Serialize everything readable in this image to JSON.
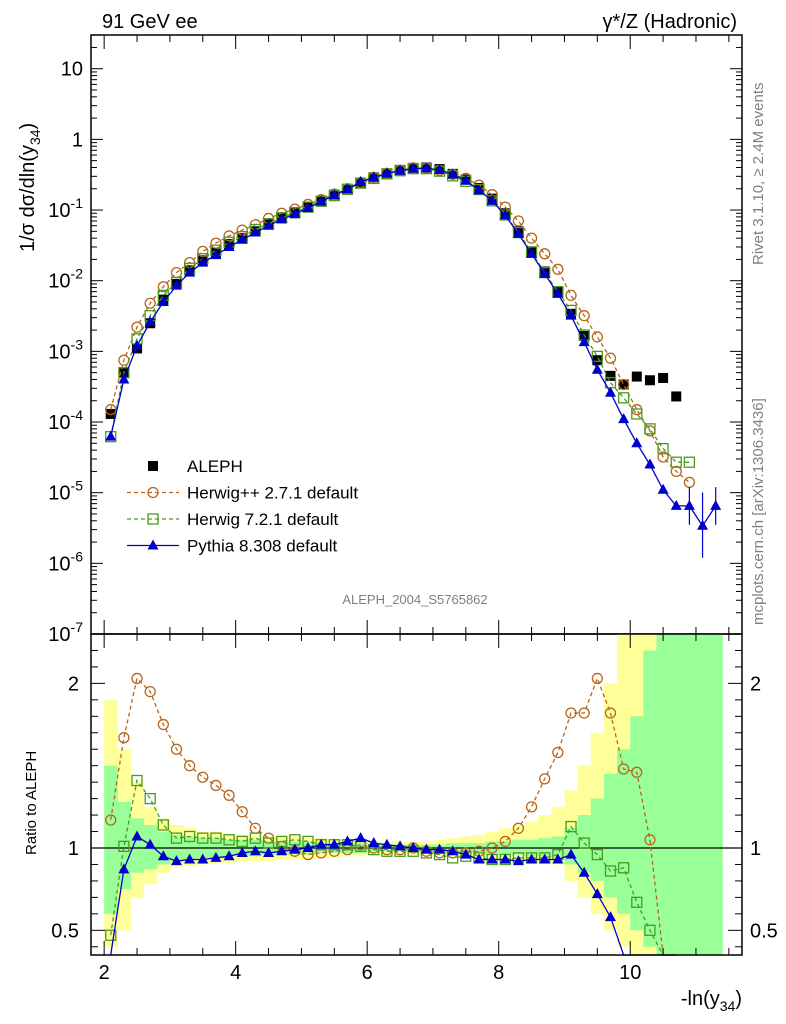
{
  "header": {
    "left": "91 GeV ee",
    "right": "γ*/Z (Hadronic)"
  },
  "side_labels": {
    "rivet": "Rivet 3.1.10, ≥ 2.4M events",
    "mcplots": "mcplots.cern.ch [arXiv:1306.3436]"
  },
  "watermark": "ALEPH_2004_S5765862",
  "chart_data": [
    {
      "type": "line",
      "ylabel": "1/σ dσ/dln(y34)",
      "yscale": "log",
      "ylim": [
        1e-07,
        30
      ],
      "xlim": [
        1.8,
        11.7
      ],
      "ytick_labels": [
        "10^-7",
        "10^-6",
        "10^-5",
        "10^-4",
        "10^-3",
        "10^-2",
        "10^-1",
        "1",
        "10"
      ],
      "legend": {
        "placement": "lower-left",
        "entries": [
          "ALEPH",
          "Herwig++ 2.7.1 default",
          "Herwig 7.2.1 default",
          "Pythia 8.308 default"
        ]
      },
      "colors": {
        "ALEPH": "#000000",
        "Herwig++": "#b8651a",
        "Herwig7": "#4a9a1f",
        "Pythia": "#0000cc"
      },
      "x": [
        2.1,
        2.3,
        2.5,
        2.7,
        2.9,
        3.1,
        3.3,
        3.5,
        3.7,
        3.9,
        4.1,
        4.3,
        4.5,
        4.7,
        4.9,
        5.1,
        5.3,
        5.5,
        5.7,
        5.9,
        6.1,
        6.3,
        6.5,
        6.7,
        6.9,
        7.1,
        7.3,
        7.5,
        7.7,
        7.9,
        8.1,
        8.3,
        8.5,
        8.7,
        8.9,
        9.1,
        9.3,
        9.5,
        9.7,
        9.9,
        10.1,
        10.3,
        10.5,
        10.7,
        10.9,
        11.1,
        11.3
      ],
      "series": [
        {
          "name": "ALEPH",
          "marker": "square",
          "values": [
            0.00013,
            0.0005,
            0.0011,
            0.0025,
            0.0054,
            0.009,
            0.014,
            0.0195,
            0.025,
            0.033,
            0.04,
            0.05,
            0.063,
            0.076,
            0.09,
            0.11,
            0.135,
            0.165,
            0.2,
            0.245,
            0.29,
            0.33,
            0.37,
            0.395,
            0.4,
            0.38,
            0.325,
            0.27,
            0.205,
            0.145,
            0.09,
            0.05,
            0.026,
            0.0135,
            0.007,
            0.0034,
            0.00165,
            0.00075,
            0.00045,
            0.00034,
            0.00044,
            0.00039,
            0.00042,
            0.00023,
            null,
            null,
            null
          ]
        },
        {
          "name": "Herwig++ 2.7.1 default",
          "marker": "open-circle",
          "values": [
            0.00015,
            0.00075,
            0.0022,
            0.0048,
            0.0082,
            0.013,
            0.018,
            0.026,
            0.034,
            0.043,
            0.052,
            0.062,
            0.076,
            0.09,
            0.103,
            0.12,
            0.14,
            0.168,
            0.2,
            0.245,
            0.29,
            0.33,
            0.365,
            0.395,
            0.39,
            0.365,
            0.32,
            0.28,
            0.225,
            0.165,
            0.11,
            0.07,
            0.04,
            0.024,
            0.0145,
            0.0062,
            0.0032,
            0.0016,
            0.0008,
            0.00034,
            0.00015,
            7.5e-05,
            3.2e-05,
            2e-05,
            1.4e-05,
            null,
            null
          ]
        },
        {
          "name": "Herwig 7.2.1 default",
          "marker": "open-square",
          "values": [
            6.2e-05,
            0.0005,
            0.0015,
            0.0032,
            0.0062,
            0.0095,
            0.015,
            0.0205,
            0.027,
            0.035,
            0.042,
            0.053,
            0.064,
            0.078,
            0.092,
            0.11,
            0.133,
            0.16,
            0.196,
            0.24,
            0.28,
            0.325,
            0.36,
            0.385,
            0.385,
            0.355,
            0.305,
            0.255,
            0.195,
            0.135,
            0.085,
            0.048,
            0.0255,
            0.013,
            0.007,
            0.0038,
            0.0017,
            0.00085,
            0.00036,
            0.00022,
            0.00013,
            8e-05,
            4.2e-05,
            2.7e-05,
            2.7e-05,
            null,
            null
          ]
        },
        {
          "name": "Pythia 8.308 default",
          "marker": "filled-triangle",
          "values": [
            6.2e-05,
            0.0004,
            0.0012,
            0.0026,
            0.005,
            0.0085,
            0.013,
            0.018,
            0.023,
            0.03,
            0.038,
            0.048,
            0.06,
            0.074,
            0.088,
            0.107,
            0.132,
            0.162,
            0.197,
            0.25,
            0.29,
            0.33,
            0.36,
            0.385,
            0.39,
            0.37,
            0.32,
            0.26,
            0.19,
            0.135,
            0.084,
            0.046,
            0.024,
            0.0125,
            0.0065,
            0.0032,
            0.00135,
            0.00055,
            0.00026,
            0.00011,
            5e-05,
            2.5e-05,
            1.1e-05,
            6.5e-06,
            6.5e-06,
            3.4e-06,
            6.5e-06
          ]
        }
      ]
    },
    {
      "type": "line",
      "ylabel": "Ratio to ALEPH",
      "xlabel": "-ln(y34)",
      "ylim": [
        0.35,
        2.3
      ],
      "xlim": [
        1.8,
        11.7
      ],
      "xticks": [
        2,
        4,
        6,
        8,
        10
      ],
      "yticks": [
        0.5,
        1,
        2
      ],
      "bands": {
        "x_edges": [
          2.0,
          2.2,
          2.4,
          2.6,
          2.8,
          3.0,
          3.2,
          3.4,
          3.6,
          3.8,
          4.0,
          4.2,
          4.4,
          4.6,
          4.8,
          5.0,
          5.2,
          5.4,
          5.6,
          5.8,
          6.0,
          6.2,
          6.4,
          6.6,
          6.8,
          7.0,
          7.2,
          7.4,
          7.6,
          7.8,
          8.0,
          8.2,
          8.4,
          8.6,
          8.8,
          9.0,
          9.2,
          9.4,
          9.6,
          9.8,
          10.0,
          10.2,
          10.4,
          10.6,
          10.8,
          11.0,
          11.2,
          11.4
        ],
        "green_lo": [
          0.6,
          0.75,
          0.85,
          0.87,
          0.9,
          0.92,
          0.93,
          0.94,
          0.94,
          0.95,
          0.95,
          0.95,
          0.96,
          0.96,
          0.96,
          0.96,
          0.97,
          0.97,
          0.97,
          0.97,
          0.98,
          0.98,
          0.98,
          0.98,
          0.98,
          0.98,
          0.97,
          0.97,
          0.97,
          0.96,
          0.96,
          0.96,
          0.95,
          0.95,
          0.94,
          0.9,
          0.85,
          0.8,
          0.7,
          0.6,
          0.5,
          0.4,
          0.3,
          0.3,
          0.3,
          0.3,
          0.3
        ],
        "green_hi": [
          1.5,
          1.28,
          1.18,
          1.14,
          1.1,
          1.08,
          1.07,
          1.06,
          1.06,
          1.05,
          1.05,
          1.05,
          1.04,
          1.04,
          1.04,
          1.04,
          1.03,
          1.03,
          1.03,
          1.03,
          1.02,
          1.02,
          1.02,
          1.02,
          1.02,
          1.02,
          1.03,
          1.03,
          1.03,
          1.04,
          1.04,
          1.05,
          1.05,
          1.06,
          1.07,
          1.12,
          1.2,
          1.3,
          1.45,
          1.6,
          1.8,
          2.2,
          2.5,
          2.6,
          2.7,
          2.8,
          3.0
        ],
        "yellow_lo": [
          0.4,
          0.5,
          0.7,
          0.78,
          0.85,
          0.88,
          0.89,
          0.9,
          0.91,
          0.91,
          0.92,
          0.92,
          0.92,
          0.93,
          0.93,
          0.93,
          0.94,
          0.94,
          0.95,
          0.95,
          0.96,
          0.96,
          0.96,
          0.96,
          0.96,
          0.96,
          0.95,
          0.94,
          0.94,
          0.93,
          0.93,
          0.92,
          0.92,
          0.91,
          0.9,
          0.8,
          0.7,
          0.6,
          0.5,
          0.4,
          0.3,
          0.3,
          0.3,
          0.3,
          0.3,
          0.3,
          0.3
        ],
        "yellow_hi": [
          1.9,
          1.6,
          1.4,
          1.25,
          1.18,
          1.14,
          1.12,
          1.1,
          1.1,
          1.09,
          1.08,
          1.08,
          1.07,
          1.07,
          1.07,
          1.06,
          1.06,
          1.05,
          1.05,
          1.05,
          1.04,
          1.04,
          1.04,
          1.04,
          1.04,
          1.05,
          1.06,
          1.07,
          1.08,
          1.1,
          1.12,
          1.14,
          1.16,
          1.2,
          1.25,
          1.35,
          1.5,
          1.7,
          2.0,
          2.3,
          2.8,
          3.0,
          3.0,
          3.0,
          3.0,
          3.0,
          3.0
        ]
      },
      "x": [
        2.1,
        2.3,
        2.5,
        2.7,
        2.9,
        3.1,
        3.3,
        3.5,
        3.7,
        3.9,
        4.1,
        4.3,
        4.5,
        4.7,
        4.9,
        5.1,
        5.3,
        5.5,
        5.7,
        5.9,
        6.1,
        6.3,
        6.5,
        6.7,
        6.9,
        7.1,
        7.3,
        7.5,
        7.7,
        7.9,
        8.1,
        8.3,
        8.5,
        8.7,
        8.9,
        9.1,
        9.3,
        9.5,
        9.7,
        9.9,
        10.1,
        10.3,
        10.5,
        10.7
      ],
      "series": [
        {
          "name": "Herwig++ 2.7.1 default",
          "values": [
            1.17,
            1.67,
            2.03,
            1.95,
            1.75,
            1.6,
            1.5,
            1.43,
            1.38,
            1.32,
            1.22,
            1.12,
            1.06,
            1.01,
            0.98,
            0.96,
            0.97,
            0.98,
            0.99,
            1.02,
            1.0,
            0.99,
            0.99,
            1.0,
            0.98,
            0.97,
            0.97,
            0.97,
            0.98,
            1.0,
            1.04,
            1.12,
            1.25,
            1.42,
            1.58,
            1.82,
            1.82,
            2.03,
            1.82,
            1.48,
            1.46,
            1.05,
            0.3,
            0.3
          ]
        },
        {
          "name": "Herwig 7.2.1 default",
          "values": [
            0.47,
            1.01,
            1.41,
            1.3,
            1.14,
            1.06,
            1.07,
            1.06,
            1.06,
            1.05,
            1.04,
            1.06,
            1.03,
            1.04,
            1.05,
            1.04,
            1.02,
            1.02,
            1.02,
            1.01,
            0.99,
            0.98,
            0.98,
            0.98,
            0.97,
            0.96,
            0.94,
            0.95,
            0.94,
            0.93,
            0.93,
            0.94,
            0.94,
            0.94,
            0.96,
            1.13,
            1.03,
            0.96,
            0.86,
            0.88,
            0.67,
            0.5,
            0.3,
            0.3
          ]
        },
        {
          "name": "Pythia 8.308 default",
          "values": [
            0.3,
            0.87,
            1.07,
            1.02,
            0.95,
            0.92,
            0.93,
            0.93,
            0.94,
            0.95,
            0.97,
            0.98,
            0.97,
            0.98,
            0.99,
            1.0,
            1.02,
            1.02,
            1.04,
            1.06,
            1.03,
            1.02,
            1.01,
            1.0,
            0.99,
            0.99,
            0.98,
            0.96,
            0.93,
            0.93,
            0.93,
            0.92,
            0.93,
            0.93,
            0.93,
            0.96,
            0.85,
            0.72,
            0.58,
            0.3,
            0.3,
            0.3,
            0.3,
            0.3
          ]
        }
      ]
    }
  ],
  "labels": {
    "tick_x": [
      "2",
      "4",
      "6",
      "8",
      "10"
    ],
    "tick_ratio": [
      "0.5",
      "1",
      "2"
    ],
    "xlabel_main": "-ln(y",
    "xlabel_sub": "34",
    "xlabel_close": ")",
    "ylabel_main_a": "1/σ  dσ/dln(y",
    "ylabel_main_sub": "34",
    "ylabel_main_close": ")",
    "ylabel_ratio": "Ratio to ALEPH"
  }
}
